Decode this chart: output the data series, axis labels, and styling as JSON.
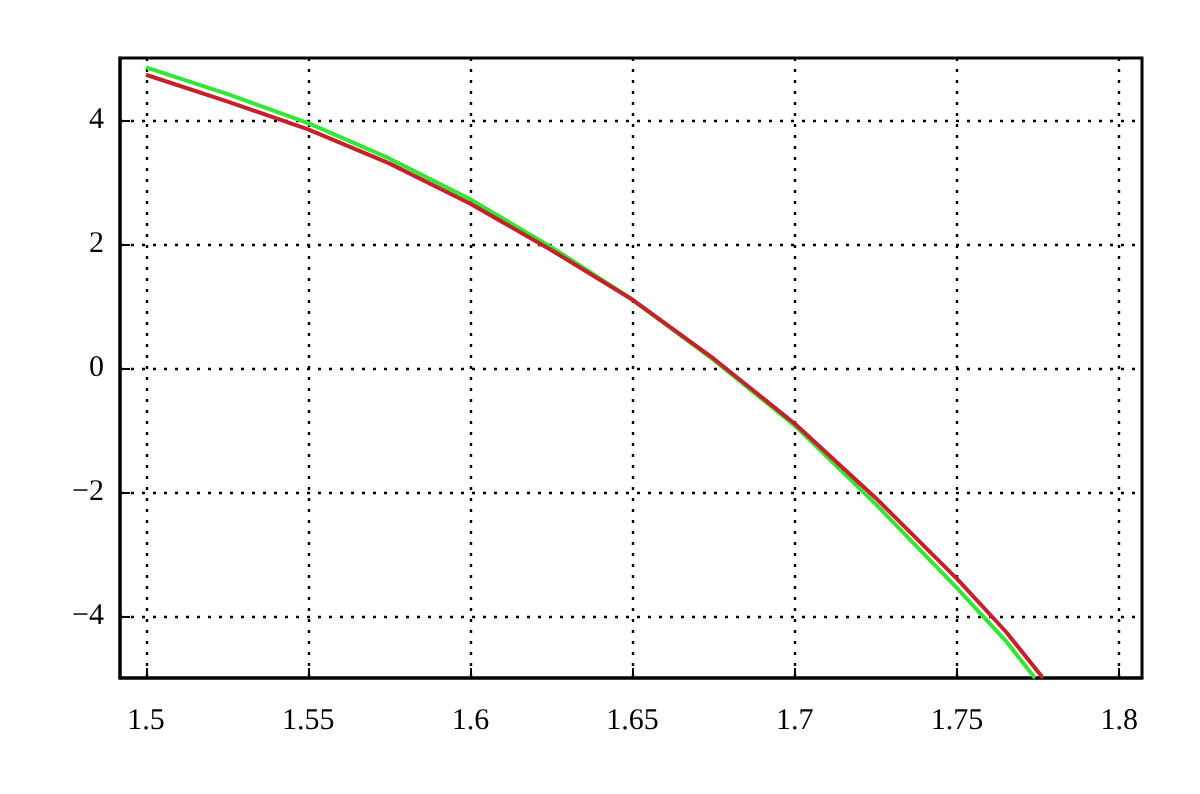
{
  "chart_data": {
    "type": "line",
    "x": [
      1.5,
      1.525,
      1.55,
      1.575,
      1.6,
      1.625,
      1.65,
      1.675,
      1.7,
      1.725,
      1.75,
      1.765,
      1.774
    ],
    "series": [
      {
        "color": "#33e633",
        "values": [
          4.85,
          4.42,
          3.95,
          3.38,
          2.72,
          1.95,
          1.1,
          0.13,
          -0.93,
          -2.2,
          -3.55,
          -4.4,
          -5
        ]
      },
      {
        "color": "#c8202a",
        "x": [
          1.5,
          1.525,
          1.55,
          1.575,
          1.6,
          1.625,
          1.65,
          1.675,
          1.7,
          1.725,
          1.75,
          1.765,
          1.7765
        ],
        "values": [
          4.73,
          4.3,
          3.85,
          3.3,
          2.65,
          1.9,
          1.1,
          0.15,
          -0.9,
          -2.1,
          -3.4,
          -4.25,
          -5
        ]
      }
    ],
    "xlim": [
      1.492,
      1.807
    ],
    "xticks": [
      1.5,
      1.55,
      1.6,
      1.65,
      1.7,
      1.75,
      1.8
    ],
    "ylim": [
      -5,
      5
    ],
    "yticks": [
      -4,
      -2,
      0,
      2,
      4
    ],
    "grid": true,
    "marker": "none",
    "line_style": "solid"
  }
}
